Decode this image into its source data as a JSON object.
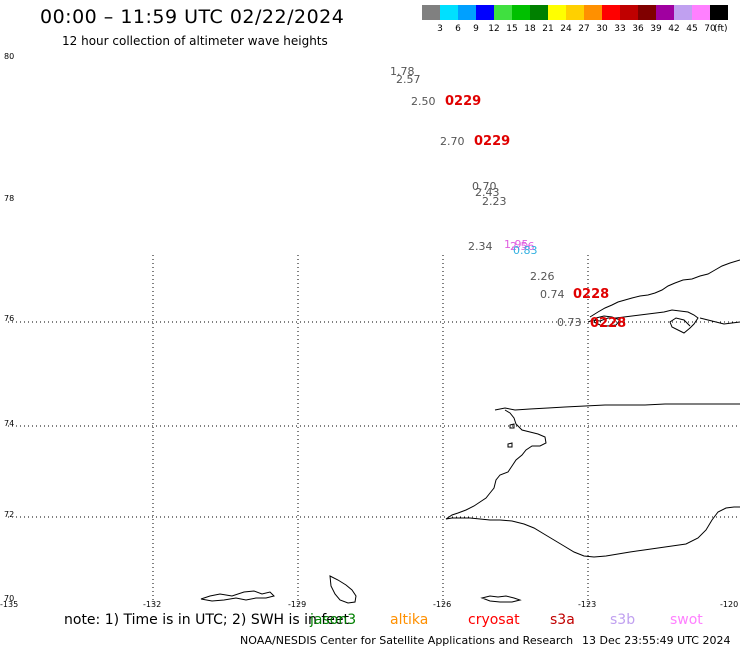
{
  "header": {
    "title": "00:00 – 11:59 UTC 02/22/2024",
    "subtitle": "12 hour collection of altimeter wave heights"
  },
  "colorbar": {
    "unit": "(ft)",
    "items": [
      {
        "label": "3",
        "color": "#808080"
      },
      {
        "label": "6",
        "color": "#00e0ff"
      },
      {
        "label": "9",
        "color": "#00a0ff"
      },
      {
        "label": "12",
        "color": "#0000ff"
      },
      {
        "label": "15",
        "color": "#40e040"
      },
      {
        "label": "18",
        "color": "#00c000"
      },
      {
        "label": "21",
        "color": "#008000"
      },
      {
        "label": "24",
        "color": "#ffff00"
      },
      {
        "label": "27",
        "color": "#ffd000"
      },
      {
        "label": "30",
        "color": "#ff9000"
      },
      {
        "label": "33",
        "color": "#ff0000"
      },
      {
        "label": "36",
        "color": "#c00000"
      },
      {
        "label": "39",
        "color": "#800000"
      },
      {
        "label": "42",
        "color": "#a000a0"
      },
      {
        "label": "45",
        "color": "#c0a0f0"
      },
      {
        "label": "70",
        "color": "#ff80ff"
      },
      {
        "label": "",
        "color": "#000000"
      }
    ]
  },
  "map": {
    "lat_labels": [
      "80",
      "78",
      "76",
      "74",
      "72",
      "70"
    ],
    "lon_labels": [
      "-135",
      "-132",
      "-129",
      "-126",
      "-123",
      "-120"
    ],
    "observations": [
      {
        "text": "1.78",
        "style": "gray"
      },
      {
        "text": "2.57",
        "style": "gray"
      },
      {
        "text": "2.50",
        "style": "gray"
      },
      {
        "text": "2.70",
        "style": "gray"
      },
      {
        "text": "0.70",
        "style": "gray"
      },
      {
        "text": "2.43",
        "style": "gray"
      },
      {
        "text": "2.23",
        "style": "gray"
      },
      {
        "text": "2.34",
        "style": "gray"
      },
      {
        "text": "1.95",
        "style": "pink"
      },
      {
        "text": "2.56",
        "style": "pink"
      },
      {
        "text": "0.83",
        "style": "cyan"
      },
      {
        "text": "2.26",
        "style": "gray"
      },
      {
        "text": "0.74",
        "style": "gray"
      },
      {
        "text": "0.73",
        "style": "gray"
      }
    ],
    "date_tags": [
      "0229",
      "0229",
      "0228",
      "0228"
    ]
  },
  "legend": {
    "note": "note: 1) Time is in UTC; 2) SWH is in feet",
    "missions": [
      {
        "label": "jason3",
        "color": "#008000"
      },
      {
        "label": "altika",
        "color": "#ff9000"
      },
      {
        "label": "cryosat",
        "color": "#ff0000"
      },
      {
        "label": "s3a",
        "color": "#c00000"
      },
      {
        "label": "s3b",
        "color": "#c0a0f0"
      },
      {
        "label": "swot",
        "color": "#ff80ff"
      }
    ]
  },
  "footer": {
    "credit": "NOAA/NESDIS Center for Satellite Applications and Research",
    "timestamp": "13 Dec 23:55:49 UTC 2024"
  }
}
